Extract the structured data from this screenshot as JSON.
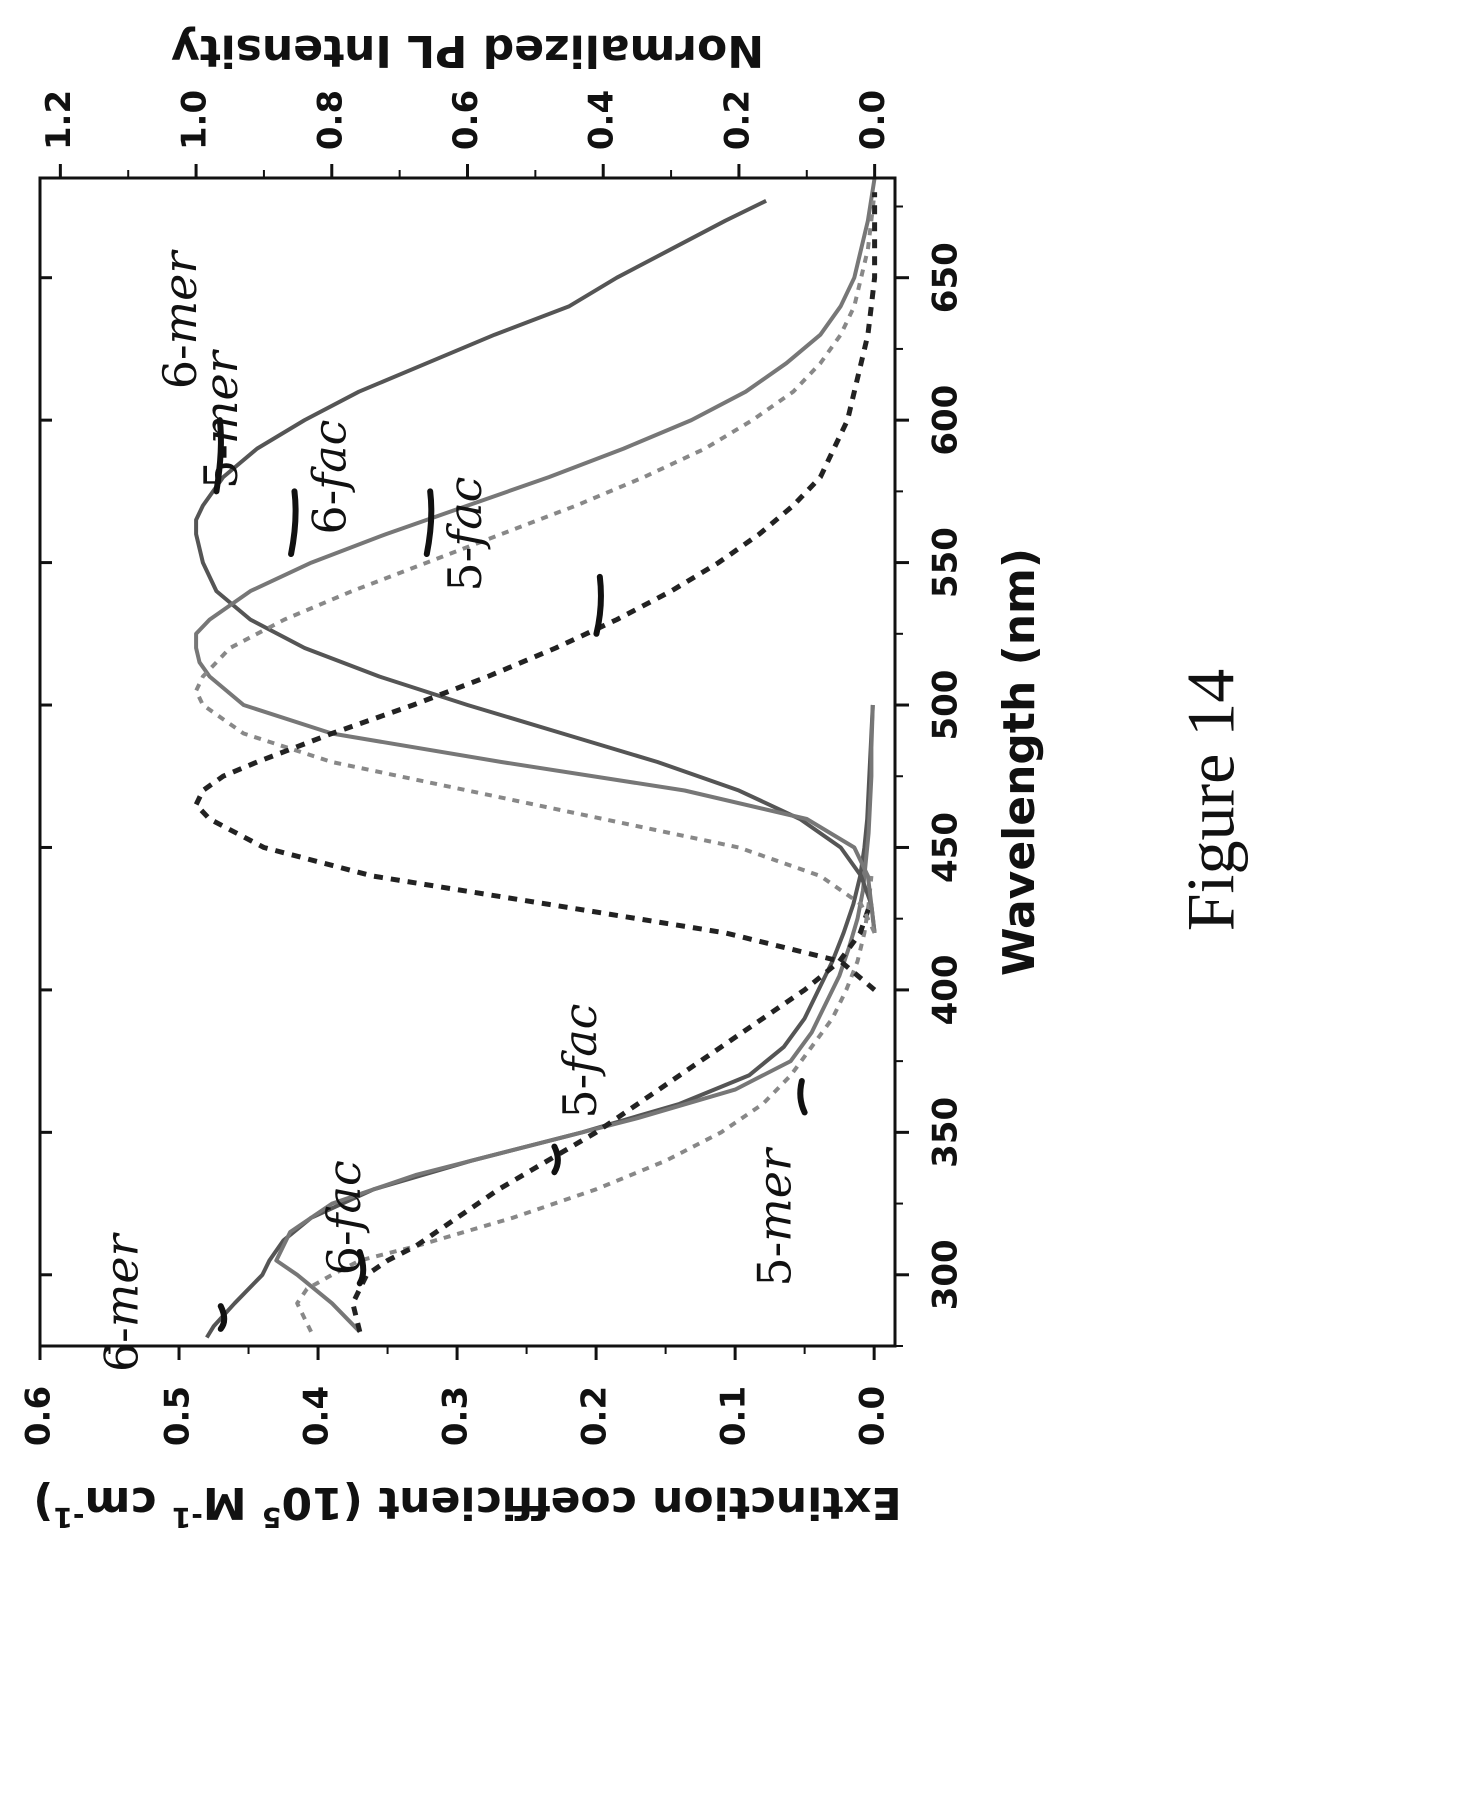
{
  "figure_caption": "Figure 14",
  "chart_data": {
    "type": "line",
    "xlabel": "Wavelength (nm)",
    "ylabel_left": {
      "main": "Extinction coefficient (10",
      "sup1": "5",
      "mid1": " M",
      "sup2": "-1",
      "mid2": " cm",
      "sup3": "-1",
      "end": ")"
    },
    "ylabel_right": "Normalized PL Intensity",
    "xlim": [
      275,
      685
    ],
    "ylim_left": [
      -0.015,
      0.6
    ],
    "ylim_right": [
      -0.03,
      1.23
    ],
    "x_ticks": [
      300,
      350,
      400,
      450,
      500,
      550,
      600,
      650
    ],
    "y_ticks_left": [
      "0.0",
      "0.1",
      "0.2",
      "0.3",
      "0.4",
      "0.5",
      "0.6"
    ],
    "y_ticks_right": [
      "0.0",
      "0.2",
      "0.4",
      "0.6",
      "0.8",
      "1.0",
      "1.2"
    ],
    "grid": false,
    "series": [
      {
        "name": "6-mer",
        "kind": "absorption",
        "axis": "left",
        "style": "solid",
        "color": "#555555",
        "x": [
          278,
          282,
          290,
          300,
          305,
          312,
          320,
          330,
          340,
          350,
          360,
          370,
          380,
          390,
          400,
          410,
          420,
          430,
          440,
          450,
          460,
          470,
          480,
          490,
          500
        ],
        "y": [
          0.48,
          0.475,
          0.46,
          0.44,
          0.435,
          0.425,
          0.405,
          0.36,
          0.29,
          0.21,
          0.14,
          0.09,
          0.065,
          0.05,
          0.04,
          0.03,
          0.022,
          0.015,
          0.01,
          0.007,
          0.005,
          0.004,
          0.003,
          0.002,
          0.001
        ]
      },
      {
        "name": "5-mer",
        "kind": "absorption",
        "axis": "left",
        "style": "solid",
        "color": "#777777",
        "x": [
          280,
          290,
          300,
          305,
          315,
          325,
          335,
          345,
          355,
          365,
          375,
          385,
          395,
          405,
          415,
          425,
          435,
          445,
          455,
          465,
          475,
          485,
          500
        ],
        "y": [
          0.37,
          0.39,
          0.415,
          0.43,
          0.42,
          0.39,
          0.33,
          0.25,
          0.17,
          0.1,
          0.06,
          0.045,
          0.035,
          0.025,
          0.018,
          0.012,
          0.008,
          0.006,
          0.004,
          0.003,
          0.002,
          0.002,
          0.001
        ]
      },
      {
        "name": "6-fac",
        "kind": "absorption",
        "axis": "left",
        "style": "dotted",
        "color": "#888888",
        "x": [
          280,
          285,
          290,
          295,
          300,
          305,
          310,
          320,
          330,
          340,
          350,
          360,
          370,
          380,
          390,
          400,
          410,
          420,
          430,
          440
        ],
        "y": [
          0.405,
          0.41,
          0.415,
          0.408,
          0.39,
          0.37,
          0.33,
          0.26,
          0.2,
          0.15,
          0.11,
          0.08,
          0.06,
          0.045,
          0.03,
          0.02,
          0.012,
          0.007,
          0.004,
          0.002
        ]
      },
      {
        "name": "5-fac",
        "kind": "absorption",
        "axis": "left",
        "style": "dotted",
        "color": "#222222",
        "x": [
          280,
          290,
          300,
          305,
          310,
          320,
          330,
          340,
          350,
          360,
          370,
          380,
          390,
          400,
          410,
          420,
          430
        ],
        "y": [
          0.37,
          0.375,
          0.365,
          0.35,
          0.33,
          0.3,
          0.27,
          0.235,
          0.2,
          0.17,
          0.14,
          0.11,
          0.08,
          0.05,
          0.025,
          0.01,
          0.003
        ]
      },
      {
        "name": "6-mer",
        "kind": "emission",
        "axis": "right",
        "style": "solid",
        "color": "#555555",
        "x": [
          420,
          430,
          440,
          450,
          460,
          470,
          480,
          490,
          500,
          510,
          520,
          530,
          540,
          550,
          560,
          565,
          570,
          580,
          590,
          600,
          610,
          620,
          630,
          640,
          650,
          660,
          670,
          677
        ],
        "y": [
          0.0,
          0.005,
          0.02,
          0.05,
          0.11,
          0.2,
          0.32,
          0.46,
          0.6,
          0.73,
          0.84,
          0.92,
          0.97,
          0.99,
          1.0,
          1.0,
          0.99,
          0.96,
          0.91,
          0.84,
          0.76,
          0.66,
          0.56,
          0.45,
          0.38,
          0.3,
          0.22,
          0.16
        ]
      },
      {
        "name": "5-mer",
        "kind": "emission",
        "axis": "right",
        "style": "solid",
        "color": "#777777",
        "x": [
          420,
          430,
          440,
          450,
          460,
          470,
          480,
          490,
          500,
          510,
          515,
          520,
          525,
          530,
          540,
          550,
          560,
          570,
          580,
          590,
          600,
          610,
          620,
          630,
          640,
          650,
          660,
          670,
          685
        ],
        "y": [
          0.0,
          0.005,
          0.01,
          0.03,
          0.1,
          0.28,
          0.55,
          0.8,
          0.93,
          0.98,
          0.995,
          1.0,
          1.0,
          0.98,
          0.92,
          0.83,
          0.72,
          0.6,
          0.48,
          0.37,
          0.27,
          0.19,
          0.13,
          0.08,
          0.05,
          0.03,
          0.02,
          0.01,
          0.0
        ]
      },
      {
        "name": "6-fac",
        "kind": "emission",
        "axis": "right",
        "style": "dotted",
        "color": "#888888",
        "x": [
          420,
          430,
          440,
          450,
          460,
          470,
          480,
          490,
          500,
          505,
          510,
          520,
          530,
          540,
          550,
          560,
          570,
          580,
          590,
          600,
          610,
          620,
          630,
          640,
          650,
          660,
          670,
          680
        ],
        "y": [
          0.0,
          0.02,
          0.08,
          0.2,
          0.4,
          0.6,
          0.8,
          0.93,
          0.99,
          1.0,
          0.99,
          0.95,
          0.87,
          0.77,
          0.66,
          0.55,
          0.44,
          0.34,
          0.25,
          0.18,
          0.12,
          0.08,
          0.05,
          0.03,
          0.02,
          0.01,
          0.005,
          0.0
        ]
      },
      {
        "name": "5-fac",
        "kind": "emission",
        "axis": "right",
        "style": "dotted",
        "color": "#222222",
        "x": [
          400,
          410,
          420,
          430,
          440,
          450,
          460,
          465,
          470,
          475,
          480,
          490,
          500,
          510,
          520,
          530,
          540,
          550,
          560,
          570,
          580,
          590,
          600,
          610,
          620,
          630,
          640,
          650,
          660,
          670,
          680
        ],
        "y": [
          0.0,
          0.05,
          0.22,
          0.48,
          0.74,
          0.9,
          0.98,
          1.0,
          0.99,
          0.96,
          0.91,
          0.8,
          0.68,
          0.57,
          0.47,
          0.38,
          0.3,
          0.23,
          0.17,
          0.12,
          0.08,
          0.06,
          0.04,
          0.03,
          0.02,
          0.01,
          0.005,
          0.0,
          0.0,
          0.0,
          0.0
        ]
      }
    ],
    "annotations": [
      {
        "text": "6-",
        "italic": "mer",
        "x": 290,
        "y": 0.53,
        "axis": "left"
      },
      {
        "text": "6-",
        "italic": "fac",
        "x": 320,
        "y": 0.37,
        "axis": "left"
      },
      {
        "text": "5-",
        "italic": "fac",
        "x": 375,
        "y": 0.2,
        "axis": "left"
      },
      {
        "text": "5-",
        "italic": "mer",
        "x": 320,
        "y": 0.06,
        "axis": "left"
      },
      {
        "text": "6-",
        "italic": "mer",
        "x": 635,
        "y": 1.0,
        "axis": "right"
      },
      {
        "text": "5-",
        "italic": "mer",
        "x": 600,
        "y": 0.94,
        "axis": "right"
      },
      {
        "text": "6-",
        "italic": "fac",
        "x": 580,
        "y": 0.78,
        "axis": "right"
      },
      {
        "text": "5-",
        "italic": "fac",
        "x": 560,
        "y": 0.58,
        "axis": "right"
      }
    ],
    "leader_lines": [
      {
        "axis": "left",
        "points": [
          [
            289,
            0.47
          ],
          [
            284,
            0.465
          ],
          [
            281,
            0.47
          ]
        ]
      },
      {
        "axis": "left",
        "points": [
          [
            308,
            0.37
          ],
          [
            301,
            0.365
          ],
          [
            297,
            0.37
          ]
        ]
      },
      {
        "axis": "left",
        "points": [
          [
            345,
            0.23
          ],
          [
            340,
            0.225
          ],
          [
            336,
            0.23
          ]
        ]
      },
      {
        "axis": "left",
        "points": [
          [
            357,
            0.05
          ],
          [
            362,
            0.055
          ],
          [
            368,
            0.052
          ]
        ]
      },
      {
        "axis": "right",
        "points": [
          [
            575,
            0.97
          ],
          [
            590,
            0.96
          ],
          [
            600,
            0.965
          ]
        ]
      },
      {
        "axis": "right",
        "points": [
          [
            553,
            0.86
          ],
          [
            565,
            0.85
          ],
          [
            575,
            0.855
          ]
        ]
      },
      {
        "axis": "right",
        "points": [
          [
            553,
            0.66
          ],
          [
            565,
            0.65
          ],
          [
            575,
            0.655
          ]
        ]
      },
      {
        "axis": "right",
        "points": [
          [
            525,
            0.41
          ],
          [
            535,
            0.4
          ],
          [
            545,
            0.405
          ]
        ]
      }
    ]
  }
}
